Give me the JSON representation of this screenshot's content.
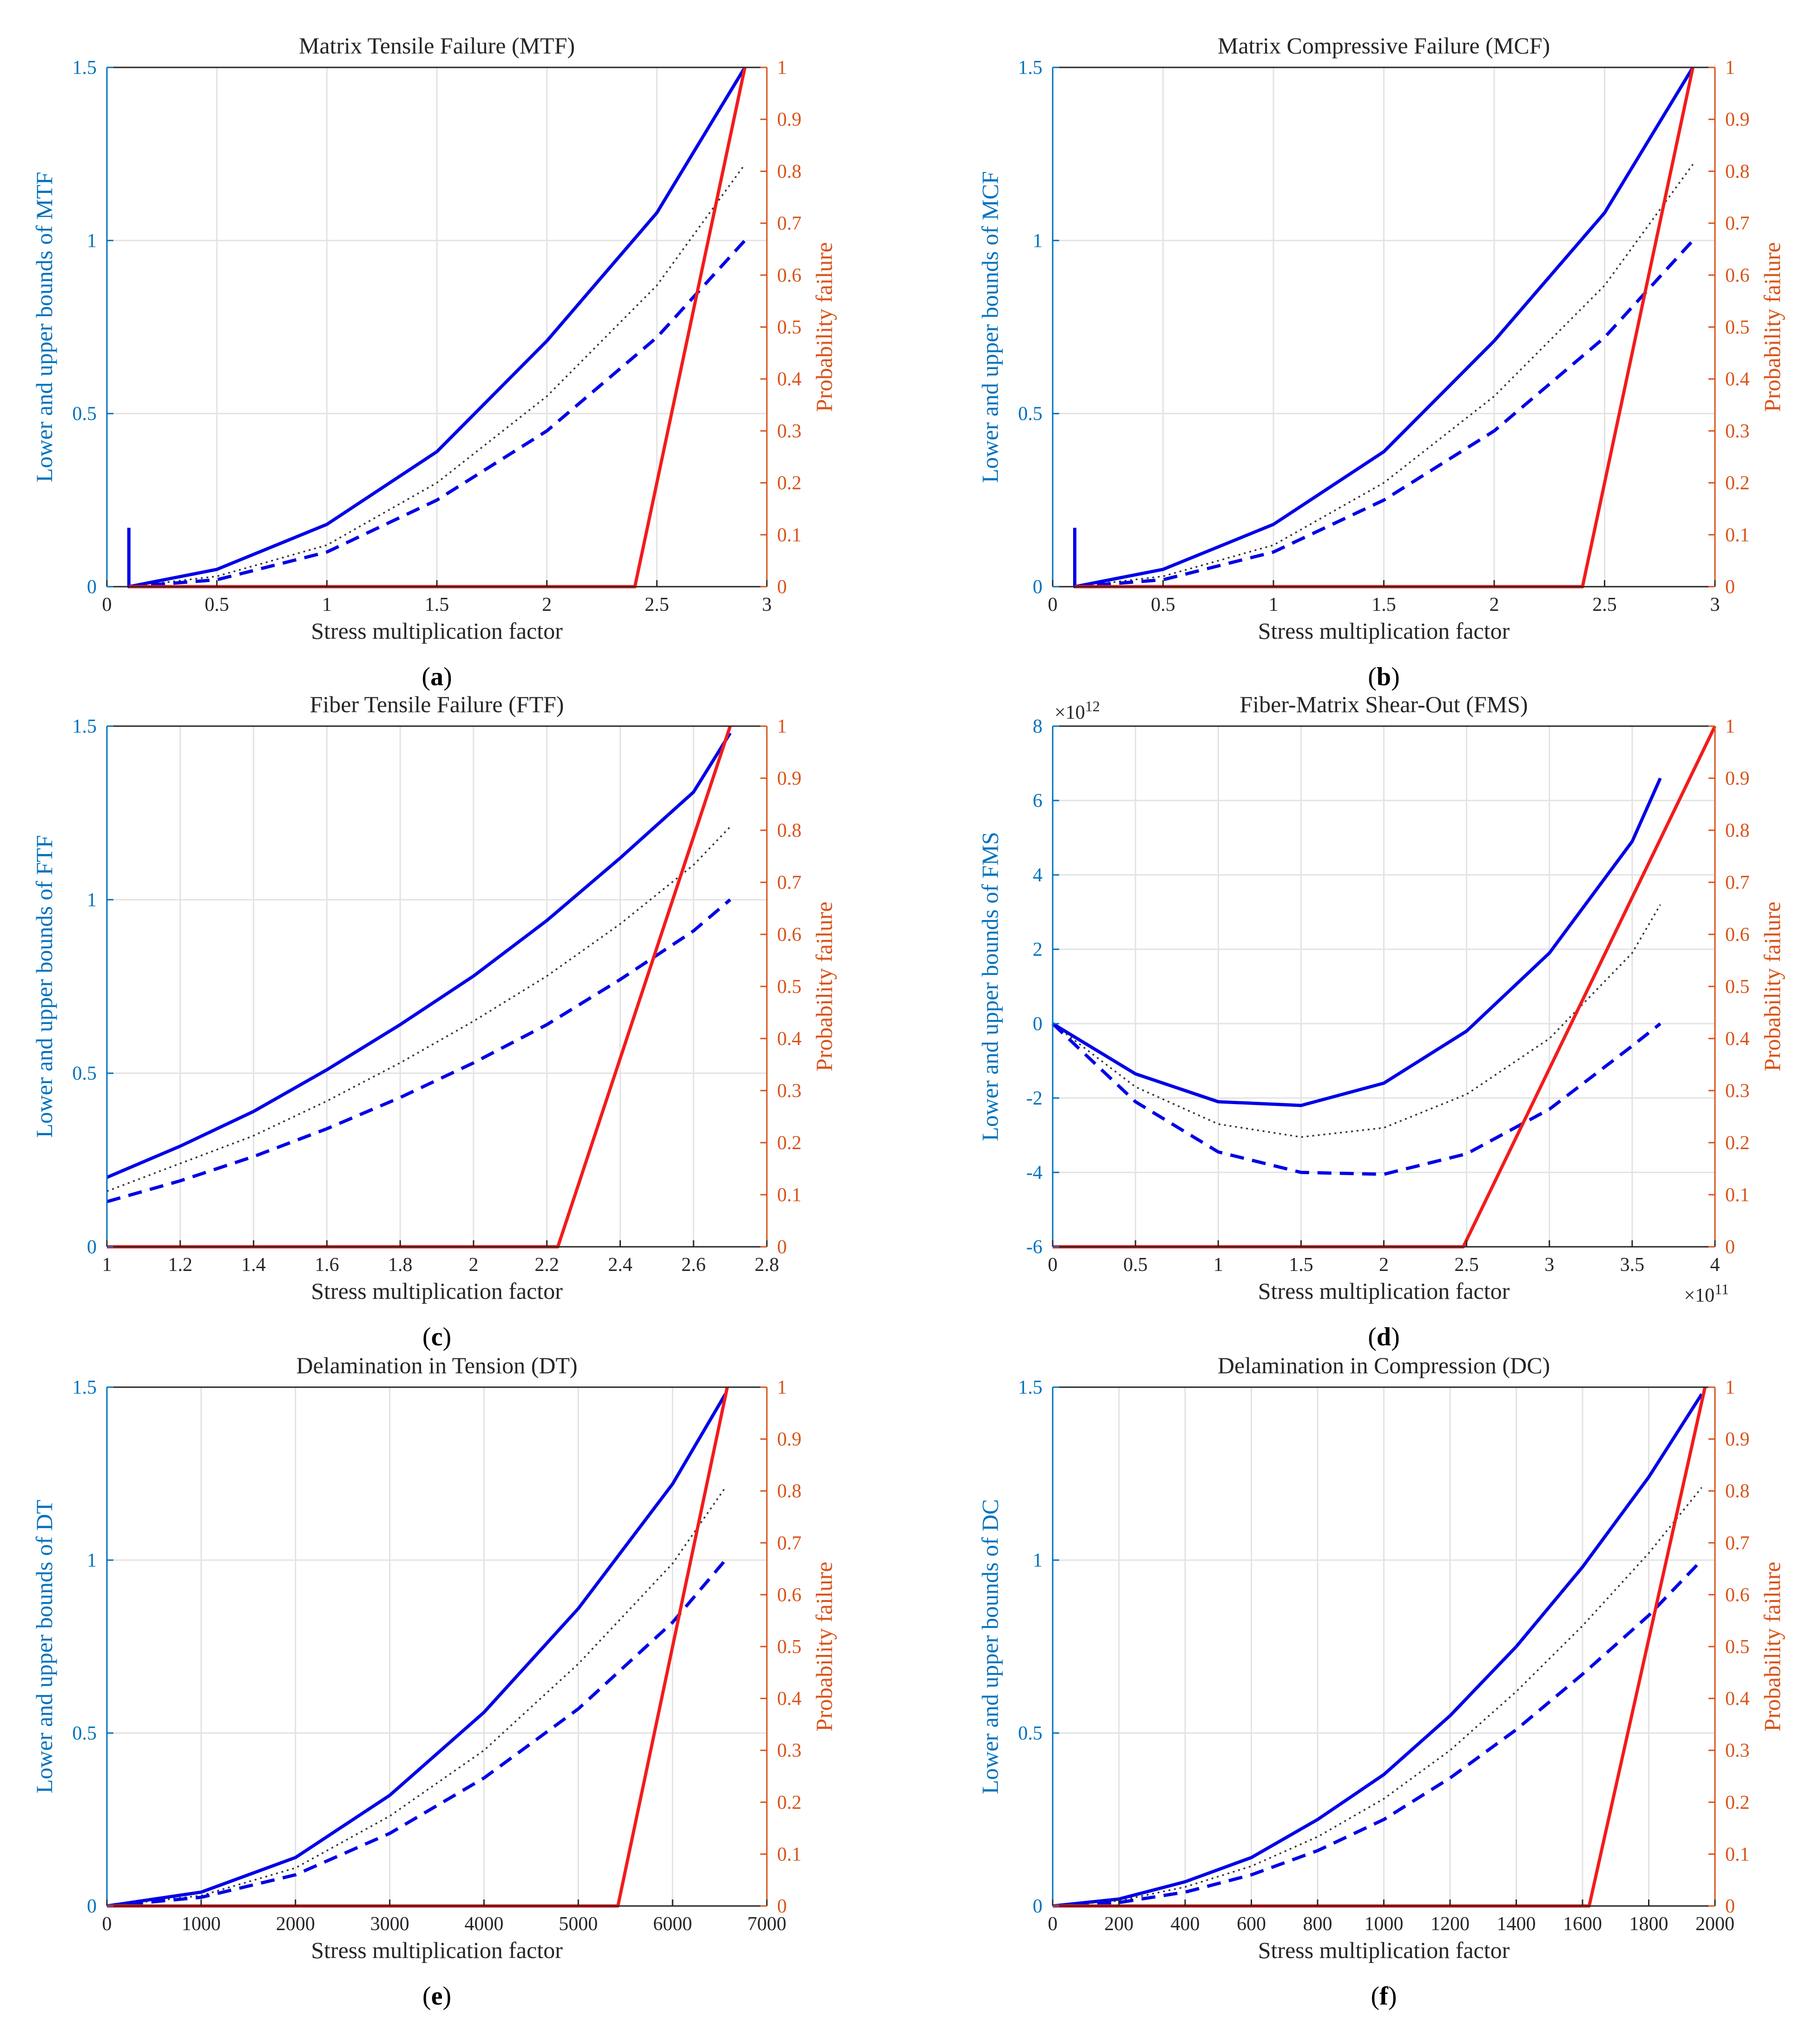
{
  "colors": {
    "left_axis": "#0072BD",
    "right_axis": "#D95319",
    "bound": "#0000E6",
    "prob": "#F21C1C",
    "mean": "#333333",
    "grid": "#E3E3E3"
  },
  "chart_data": [
    {
      "type": "line",
      "title": "Matrix Tensile Failure (MTF)",
      "caption_letter": "a",
      "xlabel": "Stress multiplication factor",
      "ylabel": "Lower and upper bounds of MTF",
      "y2label": "Probability failure",
      "xlim": [
        0,
        3
      ],
      "xticks": [
        0,
        0.5,
        1,
        1.5,
        2,
        2.5,
        3
      ],
      "xtick_labels": [
        "0",
        "0.5",
        "1",
        "1.5",
        "2",
        "2.5",
        "3"
      ],
      "ylim": [
        0,
        1.5
      ],
      "yticks": [
        0,
        0.5,
        1,
        1.5
      ],
      "ytick_labels": [
        "0",
        "0.5",
        "1",
        "1.5"
      ],
      "y2lim": [
        0,
        1
      ],
      "y2ticks": [
        0,
        0.1,
        0.2,
        0.3,
        0.4,
        0.5,
        0.6,
        0.7,
        0.8,
        0.9,
        1
      ],
      "y2tick_labels": [
        "0",
        "0.1",
        "0.2",
        "0.3",
        "0.4",
        "0.5",
        "0.6",
        "0.7",
        "0.8",
        "0.9",
        "1"
      ],
      "grid": true,
      "series": [
        {
          "style": "solid",
          "axis": "left",
          "x": [
            0.1,
            0.1,
            0.1,
            0.5,
            1.0,
            1.5,
            2.0,
            2.5,
            2.9
          ],
          "y": [
            0.17,
            0.0,
            0.0,
            0.05,
            0.18,
            0.39,
            0.71,
            1.08,
            1.5
          ]
        },
        {
          "style": "dotted",
          "axis": "left",
          "x": [
            0.1,
            0.5,
            1.0,
            1.5,
            2.0,
            2.5,
            2.9
          ],
          "y": [
            0.0,
            0.03,
            0.12,
            0.3,
            0.55,
            0.87,
            1.22
          ]
        },
        {
          "style": "dashed",
          "axis": "left",
          "x": [
            0.1,
            0.5,
            1.0,
            1.5,
            2.0,
            2.5,
            2.9
          ],
          "y": [
            0.0,
            0.02,
            0.1,
            0.25,
            0.45,
            0.72,
            1.0
          ]
        },
        {
          "style": "prob",
          "axis": "right",
          "x": [
            0.1,
            2.4,
            2.9
          ],
          "y": [
            0,
            0,
            1
          ]
        }
      ]
    },
    {
      "type": "line",
      "title": "Matrix Compressive Failure (MCF)",
      "caption_letter": "b",
      "xlabel": "Stress multiplication factor",
      "ylabel": "Lower and upper bounds of MCF",
      "y2label": "Probability failure",
      "xlim": [
        0,
        3
      ],
      "xticks": [
        0,
        0.5,
        1,
        1.5,
        2,
        2.5,
        3
      ],
      "xtick_labels": [
        "0",
        "0.5",
        "1",
        "1.5",
        "2",
        "2.5",
        "3"
      ],
      "ylim": [
        0,
        1.5
      ],
      "yticks": [
        0,
        0.5,
        1,
        1.5
      ],
      "ytick_labels": [
        "0",
        "0.5",
        "1",
        "1.5"
      ],
      "y2lim": [
        0,
        1
      ],
      "y2ticks": [
        0,
        0.1,
        0.2,
        0.3,
        0.4,
        0.5,
        0.6,
        0.7,
        0.8,
        0.9,
        1
      ],
      "y2tick_labels": [
        "0",
        "0.1",
        "0.2",
        "0.3",
        "0.4",
        "0.5",
        "0.6",
        "0.7",
        "0.8",
        "0.9",
        "1"
      ],
      "grid": true,
      "series": [
        {
          "style": "solid",
          "axis": "left",
          "x": [
            0.1,
            0.1,
            0.1,
            0.5,
            1.0,
            1.5,
            2.0,
            2.5,
            2.9
          ],
          "y": [
            0.17,
            0.0,
            0.0,
            0.05,
            0.18,
            0.39,
            0.71,
            1.08,
            1.5
          ]
        },
        {
          "style": "dotted",
          "axis": "left",
          "x": [
            0.1,
            0.5,
            1.0,
            1.5,
            2.0,
            2.5,
            2.9
          ],
          "y": [
            0.0,
            0.03,
            0.12,
            0.3,
            0.55,
            0.87,
            1.22
          ]
        },
        {
          "style": "dashed",
          "axis": "left",
          "x": [
            0.1,
            0.5,
            1.0,
            1.5,
            2.0,
            2.5,
            2.9
          ],
          "y": [
            0.0,
            0.02,
            0.1,
            0.25,
            0.45,
            0.72,
            1.0
          ]
        },
        {
          "style": "prob",
          "axis": "right",
          "x": [
            0.1,
            2.4,
            2.9
          ],
          "y": [
            0,
            0,
            1
          ]
        }
      ]
    },
    {
      "type": "line",
      "title": "Fiber Tensile Failure (FTF)",
      "caption_letter": "c",
      "xlabel": "Stress multiplication factor",
      "ylabel": "Lower and upper bounds of FTF",
      "y2label": "Probability failure",
      "xlim": [
        1,
        2.8
      ],
      "xticks": [
        1,
        1.2,
        1.4,
        1.6,
        1.8,
        2,
        2.2,
        2.4,
        2.6,
        2.8
      ],
      "xtick_labels": [
        "1",
        "1.2",
        "1.4",
        "1.6",
        "1.8",
        "2",
        "2.2",
        "2.4",
        "2.6",
        "2.8"
      ],
      "ylim": [
        0,
        1.5
      ],
      "yticks": [
        0,
        0.5,
        1,
        1.5
      ],
      "ytick_labels": [
        "0",
        "0.5",
        "1",
        "1.5"
      ],
      "y2lim": [
        0,
        1
      ],
      "y2ticks": [
        0,
        0.1,
        0.2,
        0.3,
        0.4,
        0.5,
        0.6,
        0.7,
        0.8,
        0.9,
        1
      ],
      "y2tick_labels": [
        "0",
        "0.1",
        "0.2",
        "0.3",
        "0.4",
        "0.5",
        "0.6",
        "0.7",
        "0.8",
        "0.9",
        "1"
      ],
      "grid": true,
      "series": [
        {
          "style": "solid",
          "axis": "left",
          "x": [
            1.0,
            1.2,
            1.4,
            1.6,
            1.8,
            2.0,
            2.2,
            2.4,
            2.6,
            2.7
          ],
          "y": [
            0.2,
            0.29,
            0.39,
            0.51,
            0.64,
            0.78,
            0.94,
            1.12,
            1.31,
            1.48
          ]
        },
        {
          "style": "dotted",
          "axis": "left",
          "x": [
            1.0,
            1.2,
            1.4,
            1.6,
            1.8,
            2.0,
            2.2,
            2.4,
            2.6,
            2.7
          ],
          "y": [
            0.16,
            0.24,
            0.32,
            0.42,
            0.53,
            0.65,
            0.78,
            0.93,
            1.1,
            1.21
          ]
        },
        {
          "style": "dashed",
          "axis": "left",
          "x": [
            1.0,
            1.2,
            1.4,
            1.6,
            1.8,
            2.0,
            2.2,
            2.4,
            2.6,
            2.7
          ],
          "y": [
            0.13,
            0.19,
            0.26,
            0.34,
            0.43,
            0.53,
            0.64,
            0.77,
            0.91,
            1.0
          ]
        },
        {
          "style": "prob",
          "axis": "right",
          "x": [
            1.0,
            2.23,
            2.7
          ],
          "y": [
            0,
            0,
            1
          ]
        }
      ]
    },
    {
      "type": "line",
      "title": "Fiber-Matrix Shear-Out (FMS)",
      "caption_letter": "d",
      "xlabel": "Stress multiplication factor",
      "ylabel": "Lower and upper bounds of FMS",
      "y2label": "Probability failure",
      "ymultiplier_label": "×10",
      "ymultiplier_exp": "12",
      "xmultiplier_label": "×10",
      "xmultiplier_exp": "11",
      "xlim": [
        0,
        4
      ],
      "xticks": [
        0,
        0.5,
        1,
        1.5,
        2,
        2.5,
        3,
        3.5,
        4
      ],
      "xtick_labels": [
        "0",
        "0.5",
        "1",
        "1.5",
        "2",
        "2.5",
        "3",
        "3.5",
        "4"
      ],
      "ylim": [
        -6,
        8
      ],
      "yticks": [
        -6,
        -4,
        -2,
        0,
        2,
        4,
        6,
        8
      ],
      "ytick_labels": [
        "-6",
        "-4",
        "-2",
        "0",
        "2",
        "4",
        "6",
        "8"
      ],
      "y2lim": [
        0,
        1
      ],
      "y2ticks": [
        0,
        0.1,
        0.2,
        0.3,
        0.4,
        0.5,
        0.6,
        0.7,
        0.8,
        0.9,
        1
      ],
      "y2tick_labels": [
        "0",
        "0.1",
        "0.2",
        "0.3",
        "0.4",
        "0.5",
        "0.6",
        "0.7",
        "0.8",
        "0.9",
        "1"
      ],
      "grid": true,
      "series": [
        {
          "style": "solid",
          "axis": "left",
          "x": [
            0,
            0.5,
            1.0,
            1.5,
            2.0,
            2.5,
            3.0,
            3.5,
            3.67
          ],
          "y": [
            0,
            -1.35,
            -2.1,
            -2.2,
            -1.6,
            -0.2,
            1.9,
            4.9,
            6.6
          ]
        },
        {
          "style": "dotted",
          "axis": "left",
          "x": [
            0,
            0.5,
            1.0,
            1.5,
            2.0,
            2.5,
            3.0,
            3.5,
            3.67
          ],
          "y": [
            0,
            -1.7,
            -2.7,
            -3.05,
            -2.8,
            -1.9,
            -0.4,
            1.9,
            3.2
          ]
        },
        {
          "style": "dashed",
          "axis": "left",
          "x": [
            0,
            0.5,
            1.0,
            1.5,
            2.0,
            2.5,
            3.0,
            3.5,
            3.67
          ],
          "y": [
            0,
            -2.1,
            -3.45,
            -4.0,
            -4.05,
            -3.5,
            -2.3,
            -0.6,
            0.0
          ]
        },
        {
          "style": "prob",
          "axis": "right",
          "x": [
            0,
            2.48,
            4.0
          ],
          "y": [
            0,
            0,
            1
          ]
        }
      ]
    },
    {
      "type": "line",
      "title": "Delamination in Tension (DT)",
      "caption_letter": "e",
      "xlabel": "Stress multiplication factor",
      "ylabel": "Lower and upper bounds of DT",
      "y2label": "Probability failure",
      "xlim": [
        0,
        7000
      ],
      "xticks": [
        0,
        1000,
        2000,
        3000,
        4000,
        5000,
        6000,
        7000
      ],
      "xtick_labels": [
        "0",
        "1000",
        "2000",
        "3000",
        "4000",
        "5000",
        "6000",
        "7000"
      ],
      "ylim": [
        0,
        1.5
      ],
      "yticks": [
        0,
        0.5,
        1,
        1.5
      ],
      "ytick_labels": [
        "0",
        "0.5",
        "1",
        "1.5"
      ],
      "y2lim": [
        0,
        1
      ],
      "y2ticks": [
        0,
        0.1,
        0.2,
        0.3,
        0.4,
        0.5,
        0.6,
        0.7,
        0.8,
        0.9,
        1
      ],
      "y2tick_labels": [
        "0",
        "0.1",
        "0.2",
        "0.3",
        "0.4",
        "0.5",
        "0.6",
        "0.7",
        "0.8",
        "0.9",
        "1"
      ],
      "grid": true,
      "series": [
        {
          "style": "solid",
          "axis": "left",
          "x": [
            0,
            1000,
            2000,
            3000,
            4000,
            5000,
            6000,
            6560
          ],
          "y": [
            0,
            0.04,
            0.14,
            0.32,
            0.56,
            0.86,
            1.22,
            1.48
          ]
        },
        {
          "style": "dotted",
          "axis": "left",
          "x": [
            0,
            1000,
            2000,
            3000,
            4000,
            5000,
            6000,
            6560
          ],
          "y": [
            0,
            0.03,
            0.11,
            0.26,
            0.45,
            0.7,
            0.99,
            1.21
          ]
        },
        {
          "style": "dashed",
          "axis": "left",
          "x": [
            0,
            1000,
            2000,
            3000,
            4000,
            5000,
            6000,
            6560
          ],
          "y": [
            0,
            0.025,
            0.09,
            0.21,
            0.37,
            0.57,
            0.82,
            1.0
          ]
        },
        {
          "style": "prob",
          "axis": "right",
          "x": [
            0,
            5420,
            6580
          ],
          "y": [
            0,
            0,
            1
          ]
        }
      ]
    },
    {
      "type": "line",
      "title": "Delamination in Compression (DC)",
      "caption_letter": "f",
      "xlabel": "Stress multiplication factor",
      "ylabel": "Lower and upper bounds of DC",
      "y2label": "Probability failure",
      "xlim": [
        0,
        2000
      ],
      "xticks": [
        0,
        200,
        400,
        600,
        800,
        1000,
        1200,
        1400,
        1600,
        1800,
        2000
      ],
      "xtick_labels": [
        "0",
        "200",
        "400",
        "600",
        "800",
        "1000",
        "1200",
        "1400",
        "1600",
        "1800",
        "2000"
      ],
      "ylim": [
        0,
        1.5
      ],
      "yticks": [
        0,
        0.5,
        1,
        1.5
      ],
      "ytick_labels": [
        "0",
        "0.5",
        "1",
        "1.5"
      ],
      "y2lim": [
        0,
        1
      ],
      "y2ticks": [
        0,
        0.1,
        0.2,
        0.3,
        0.4,
        0.5,
        0.6,
        0.7,
        0.8,
        0.9,
        1
      ],
      "y2tick_labels": [
        "0",
        "0.1",
        "0.2",
        "0.3",
        "0.4",
        "0.5",
        "0.6",
        "0.7",
        "0.8",
        "0.9",
        "1"
      ],
      "grid": true,
      "series": [
        {
          "style": "solid",
          "axis": "left",
          "x": [
            0,
            200,
            400,
            600,
            800,
            1000,
            1200,
            1400,
            1600,
            1800,
            1960
          ],
          "y": [
            0,
            0.02,
            0.07,
            0.14,
            0.25,
            0.38,
            0.55,
            0.75,
            0.98,
            1.24,
            1.48
          ]
        },
        {
          "style": "dotted",
          "axis": "left",
          "x": [
            0,
            200,
            400,
            600,
            800,
            1000,
            1200,
            1400,
            1600,
            1800,
            1960
          ],
          "y": [
            0,
            0.015,
            0.055,
            0.115,
            0.2,
            0.31,
            0.45,
            0.62,
            0.81,
            1.02,
            1.21
          ]
        },
        {
          "style": "dashed",
          "axis": "left",
          "x": [
            0,
            200,
            400,
            600,
            800,
            1000,
            1200,
            1400,
            1600,
            1800,
            1960
          ],
          "y": [
            0,
            0.01,
            0.04,
            0.09,
            0.16,
            0.25,
            0.37,
            0.51,
            0.67,
            0.84,
            1.0
          ]
        },
        {
          "style": "prob",
          "axis": "right",
          "x": [
            0,
            1620,
            1970
          ],
          "y": [
            0,
            0,
            1
          ]
        }
      ]
    }
  ]
}
